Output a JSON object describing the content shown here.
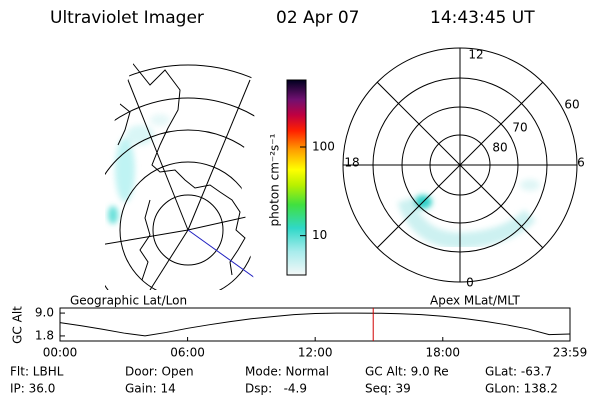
{
  "header": {
    "title": "Ultraviolet Imager",
    "date": "02 Apr 07",
    "time": "14:43:45 UT"
  },
  "colorbar": {
    "label": "photon cm⁻²s⁻¹",
    "lim": [
      3.6,
      570
    ],
    "ticks": [
      10,
      100
    ],
    "log": true
  },
  "polar": {
    "mlt_labels": [
      "12",
      "18",
      "6",
      "0"
    ],
    "lat_labels": [
      "60",
      "70",
      "80"
    ]
  },
  "chart_data": {
    "type": "line",
    "left_label": "Geographic Lat/Lon",
    "right_label": "Apex MLat/MLT",
    "ylabel": "GC Alt",
    "x": [
      0,
      1,
      2,
      3,
      4,
      5,
      6,
      7,
      8,
      9,
      10,
      11,
      12,
      13,
      14,
      15,
      16,
      17,
      18,
      19,
      20,
      21,
      22,
      23,
      23.983
    ],
    "values": [
      6.0,
      5.0,
      3.9,
      2.7,
      1.8,
      2.9,
      4.2,
      5.3,
      6.3,
      7.2,
      7.9,
      8.5,
      8.85,
      8.97,
      9.0,
      8.96,
      8.8,
      8.5,
      8.0,
      7.3,
      6.4,
      5.3,
      4.0,
      2.2,
      2.4
    ],
    "color": "#000000",
    "marker": 14.729,
    "marker_color": "#d00000",
    "xlim": [
      0,
      23.983
    ],
    "ylim": [
      0.2,
      10.6
    ],
    "xticks": [
      {
        "value": 0,
        "label": "00:00"
      },
      {
        "value": 6,
        "label": "06:00"
      },
      {
        "value": 12,
        "label": "12:00"
      },
      {
        "value": 18,
        "label": "18:00"
      },
      {
        "value": 23.983,
        "label": "23:59"
      }
    ],
    "yticks": [
      {
        "value": 9,
        "label": "9.0"
      },
      {
        "value": 1.8,
        "label": "1.8"
      }
    ]
  },
  "footer": {
    "rows": [
      [
        "Flt: LBHL",
        "Door: Open",
        "Mode: Normal",
        "GC Alt: 9.0 Re",
        "GLat: -63.7"
      ],
      [
        "IP: 36.0",
        "Gain: 14",
        "Dsp:   -4.9",
        "Seq: 39",
        "GLon: 138.2"
      ]
    ]
  }
}
